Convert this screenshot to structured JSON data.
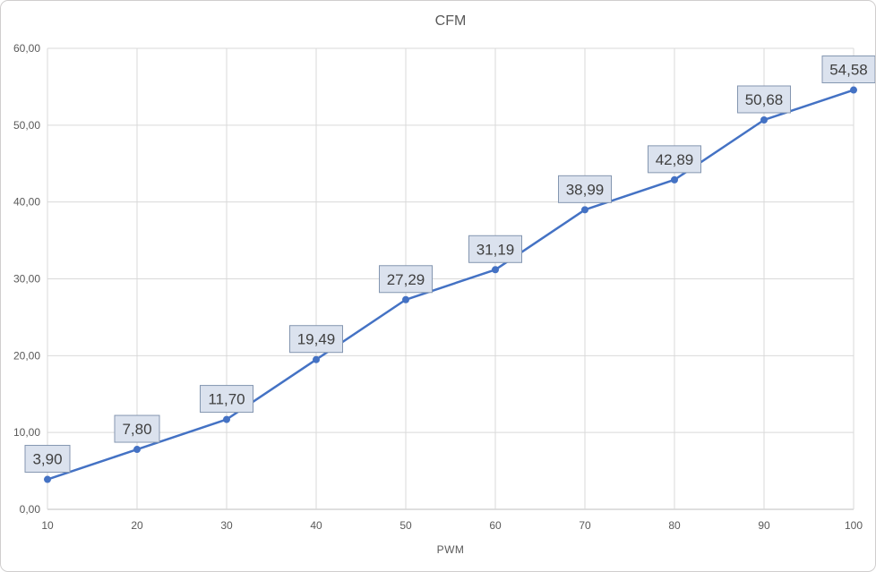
{
  "chart_data": {
    "type": "line",
    "title": "CFM",
    "xlabel": "PWM",
    "ylabel": "",
    "x": [
      10,
      20,
      30,
      40,
      50,
      60,
      70,
      80,
      90,
      100
    ],
    "values": [
      3.9,
      7.8,
      11.7,
      19.49,
      27.29,
      31.19,
      38.99,
      42.89,
      50.68,
      54.58
    ],
    "point_labels": [
      "3,90",
      "7,80",
      "11,70",
      "19,49",
      "27,29",
      "31,19",
      "38,99",
      "42,89",
      "50,68",
      "54,58"
    ],
    "x_ticks": [
      10,
      20,
      30,
      40,
      50,
      60,
      70,
      80,
      90,
      100
    ],
    "x_tick_labels": [
      "10",
      "20",
      "30",
      "40",
      "50",
      "60",
      "70",
      "80",
      "90",
      "100"
    ],
    "y_ticks": [
      0,
      10,
      20,
      30,
      40,
      50,
      60
    ],
    "y_tick_labels": [
      "0,00",
      "10,00",
      "20,00",
      "30,00",
      "40,00",
      "50,00",
      "60,00"
    ],
    "xlim": [
      10,
      100
    ],
    "ylim": [
      0,
      60
    ],
    "grid": true,
    "legend": "none",
    "colors": {
      "series": "#4472C4",
      "marker": "#4472C4",
      "label_box_fill": "#DBE2EE",
      "label_box_border": "#8496B0",
      "label_text": "#404040",
      "gridline": "#D9D9D9",
      "axis_line": "#BFBFBF",
      "tick_text": "#595959",
      "title_text": "#595959"
    }
  }
}
